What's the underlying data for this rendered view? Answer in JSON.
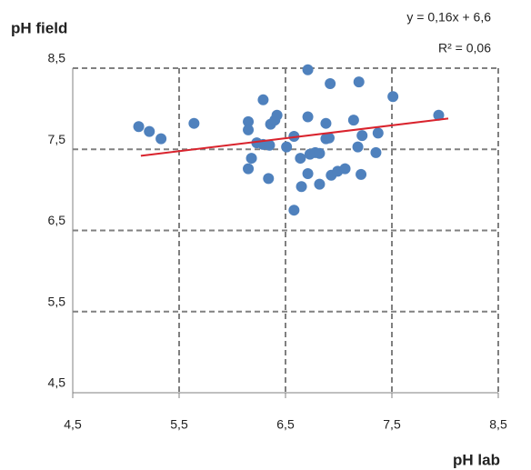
{
  "chart_data": {
    "type": "scatter",
    "y_label": "pH field",
    "x_label": "pH lab",
    "annotations": [
      "y = 0,16x + 6,6",
      "R² = 0,06"
    ],
    "color": "#4f81bd",
    "x": [
      5.12,
      5.22,
      5.33,
      5.64,
      6.15,
      6.15,
      6.18,
      6.15,
      6.29,
      6.23,
      6.29,
      6.35,
      6.34,
      6.36,
      6.4,
      6.42,
      6.51,
      6.58,
      6.58,
      6.64,
      6.65,
      6.71,
      6.71,
      6.71,
      6.73,
      6.78,
      6.82,
      6.82,
      6.88,
      6.92,
      6.88,
      6.91,
      6.93,
      6.99,
      7.06,
      7.14,
      7.18,
      7.19,
      7.22,
      7.21,
      7.35,
      7.37,
      7.51,
      7.94
    ],
    "values": [
      7.78,
      7.72,
      7.63,
      7.82,
      7.84,
      7.74,
      7.39,
      7.26,
      8.11,
      7.58,
      7.56,
      7.55,
      7.14,
      7.81,
      7.86,
      7.92,
      7.53,
      7.66,
      6.75,
      7.39,
      7.04,
      8.48,
      7.9,
      7.2,
      7.44,
      7.46,
      7.45,
      7.07,
      7.63,
      8.31,
      7.82,
      7.64,
      7.18,
      7.23,
      7.26,
      7.86,
      7.53,
      8.33,
      7.67,
      7.19,
      7.46,
      7.7,
      8.15,
      7.92
    ],
    "trendline": {
      "color": "#d9232d",
      "x": [
        5.14,
        8.03
      ],
      "values": [
        7.42,
        7.88
      ]
    },
    "xlim": [
      4.5,
      8.5
    ],
    "xticks": [
      {
        "value": 4.5,
        "label": "4,5"
      },
      {
        "value": 5.5,
        "label": "5,5"
      },
      {
        "value": 6.5,
        "label": "6,5"
      },
      {
        "value": 7.5,
        "label": "7,5"
      },
      {
        "value": 8.5,
        "label": "8,5"
      }
    ],
    "ylim": [
      4.5,
      8.5
    ],
    "yticks": [
      {
        "value": 4.5,
        "label": "4,5"
      },
      {
        "value": 5.5,
        "label": "5,5"
      },
      {
        "value": 6.5,
        "label": "6,5"
      },
      {
        "value": 7.5,
        "label": "7,5"
      },
      {
        "value": 8.5,
        "label": "8,5"
      }
    ],
    "grid": true
  }
}
